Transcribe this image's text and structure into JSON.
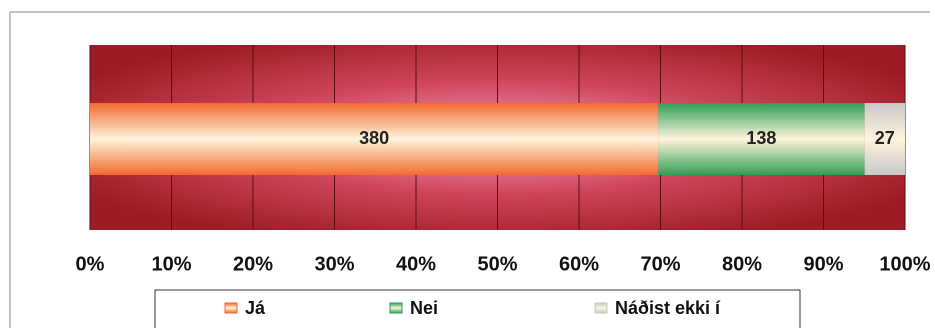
{
  "chart_data": {
    "type": "bar",
    "orientation": "horizontal",
    "stacking": "percent",
    "series": [
      {
        "name": "Já",
        "color": "#f26a2e",
        "values": [
          380
        ]
      },
      {
        "name": "Nei",
        "color": "#2f9e55",
        "values": [
          138
        ]
      },
      {
        "name": "Náðist ekki í",
        "color": "#c8c8c8",
        "values": [
          27
        ]
      }
    ],
    "xlim": [
      0,
      100
    ],
    "xticks": [
      {
        "value": 0,
        "label": "0%"
      },
      {
        "value": 10,
        "label": "10%"
      },
      {
        "value": 20,
        "label": "20%"
      },
      {
        "value": 30,
        "label": "30%"
      },
      {
        "value": 40,
        "label": "40%"
      },
      {
        "value": 50,
        "label": "50%"
      },
      {
        "value": 60,
        "label": "60%"
      },
      {
        "value": 70,
        "label": "70%"
      },
      {
        "value": 80,
        "label": "80%"
      },
      {
        "value": 90,
        "label": "90%"
      },
      {
        "value": 100,
        "label": "100%"
      }
    ],
    "grid": true,
    "legend": "bottom"
  }
}
